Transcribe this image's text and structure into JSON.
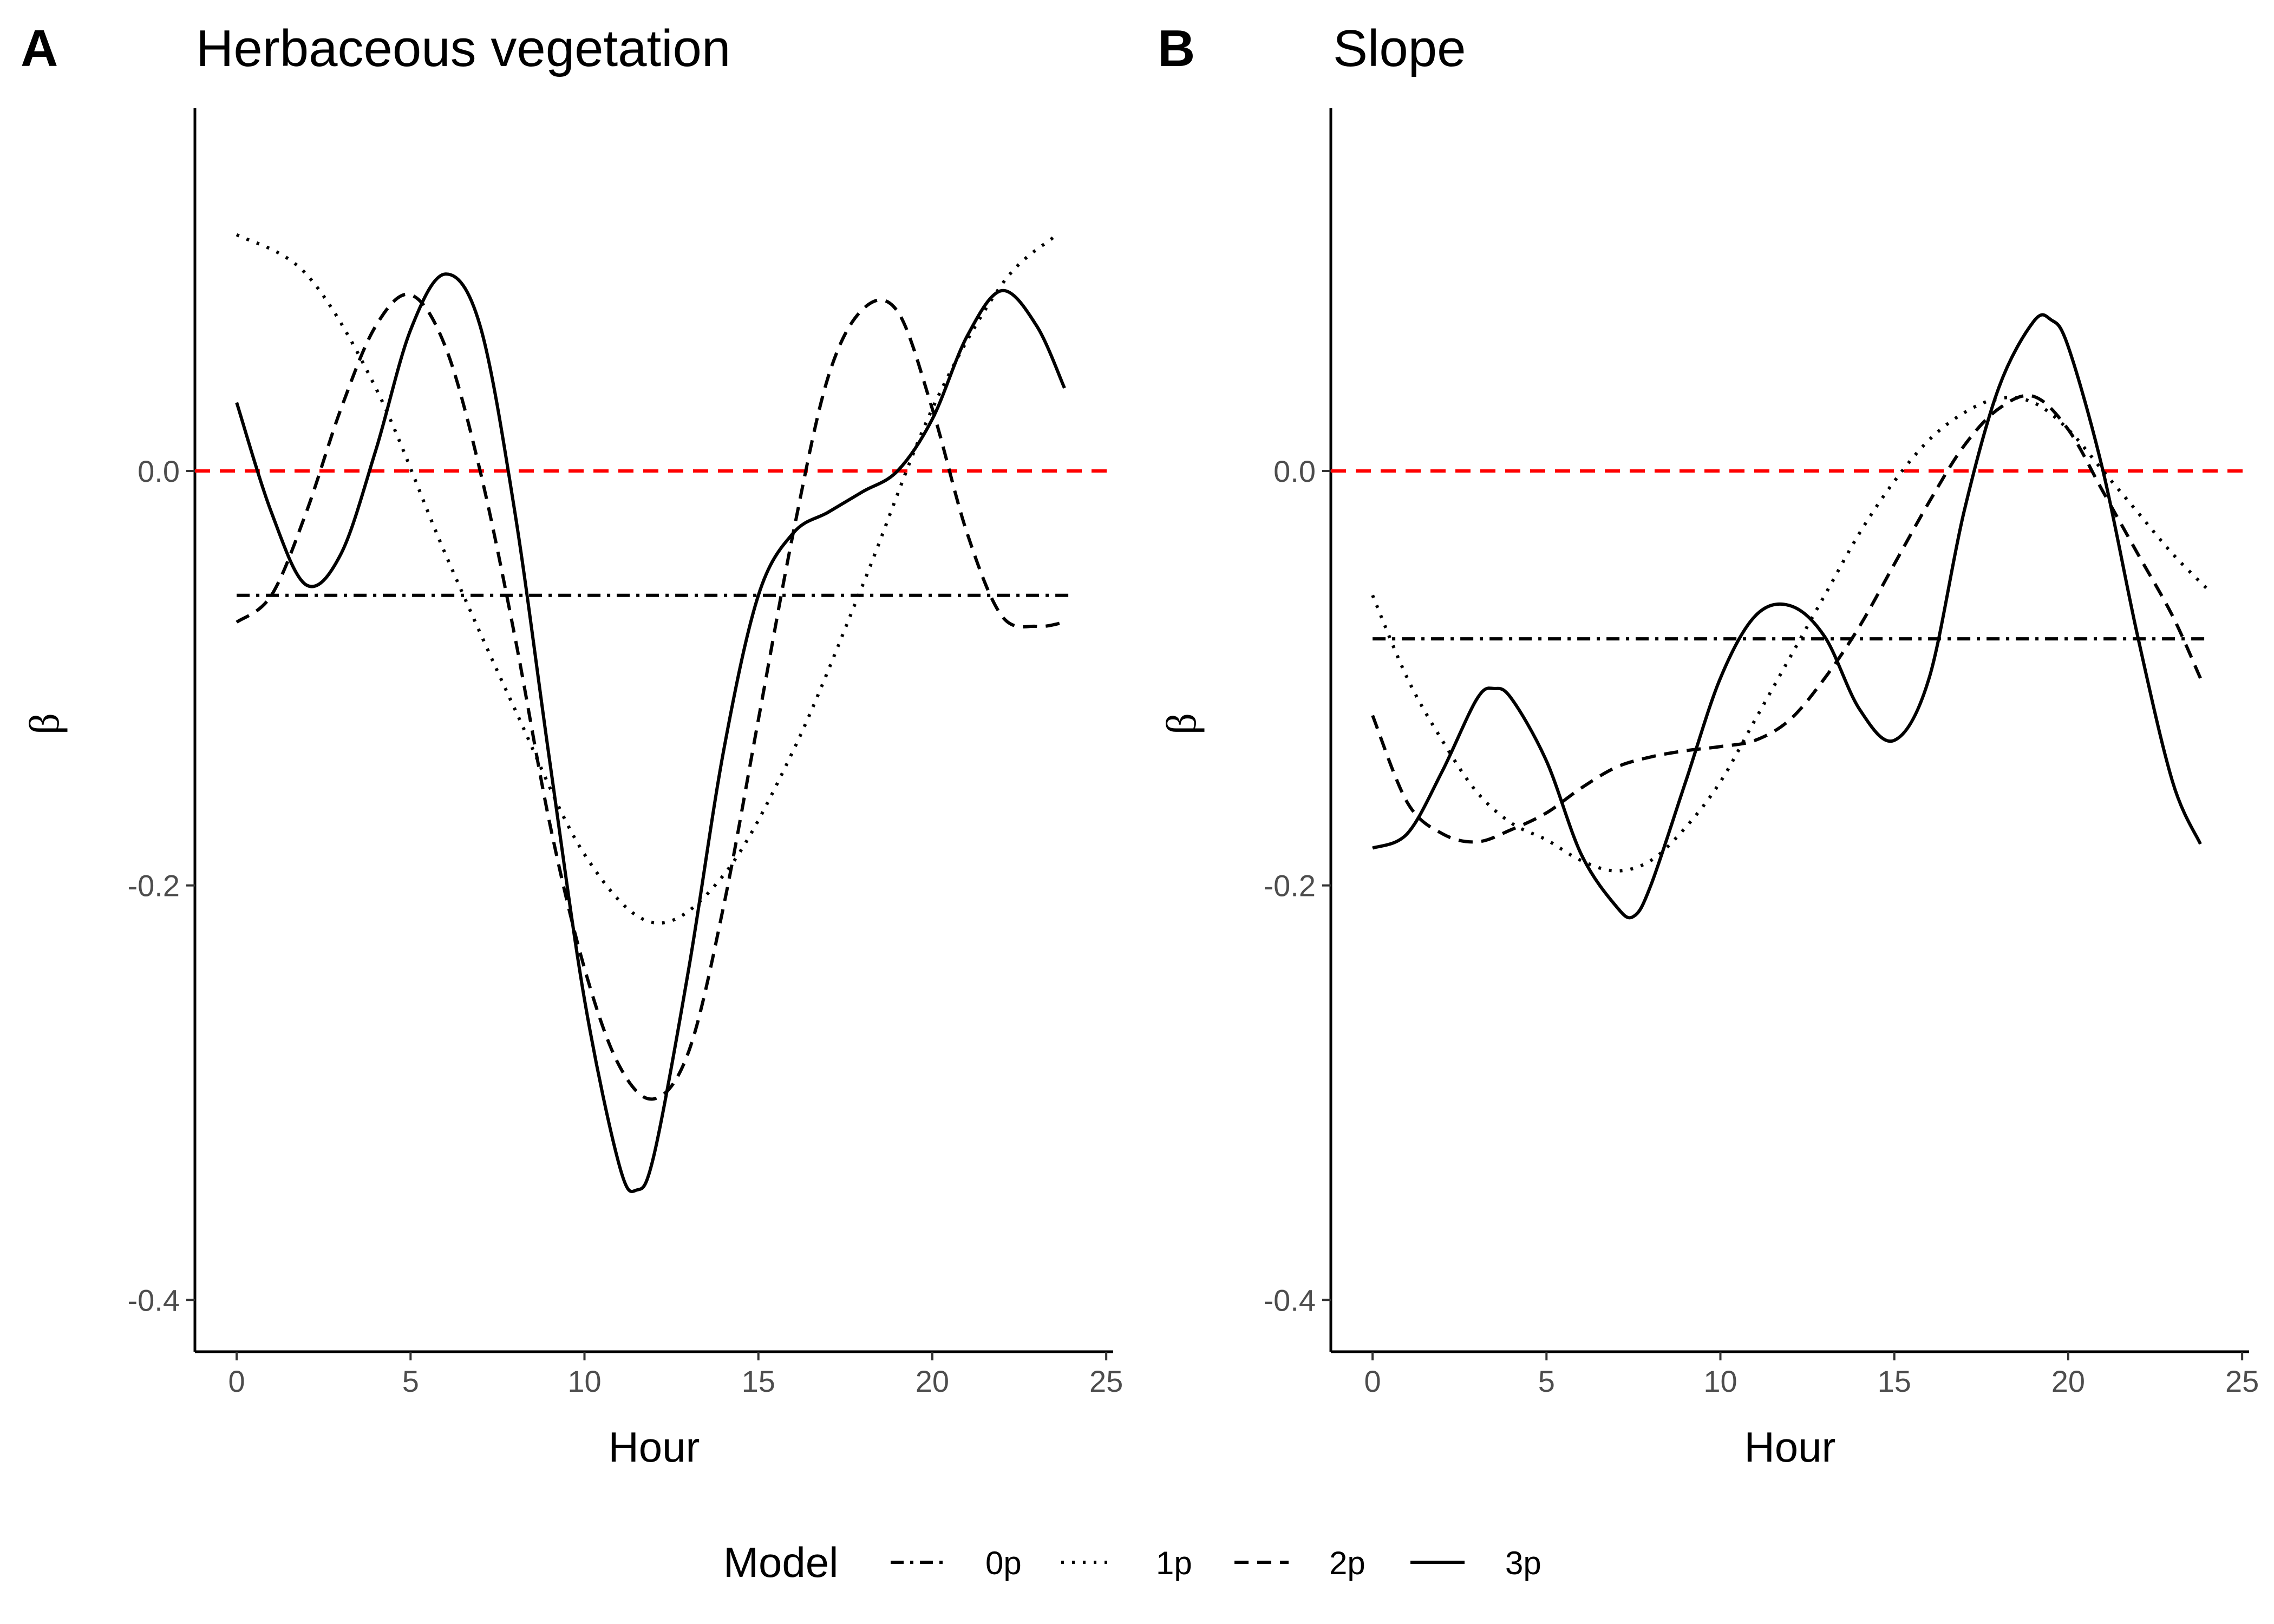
{
  "legend": {
    "title": "Model",
    "entries": [
      {
        "label": "0p",
        "dash": "dashdot"
      },
      {
        "label": "1p",
        "dash": "dotted"
      },
      {
        "label": "2p",
        "dash": "dashed"
      },
      {
        "label": "3p",
        "dash": "solid"
      }
    ]
  },
  "colors": {
    "reference_line": "#ff0000",
    "series": "#000000",
    "tick_text": "#4d4d4d"
  },
  "chart_data": [
    {
      "type": "line",
      "panel": "A",
      "title": "Herbaceous vegetation",
      "xlabel": "Hour",
      "ylabel": "β",
      "xlim": [
        -1.2,
        25.2
      ],
      "ylim": [
        -0.425,
        0.175
      ],
      "xticks": [
        0,
        5,
        10,
        15,
        20,
        25
      ],
      "yticks": [
        0.0,
        -0.2,
        -0.4
      ],
      "ytick_labels": [
        "0.0",
        "-0.2",
        "-0.4"
      ],
      "reference_line": {
        "y": 0,
        "style": "dashed",
        "color": "#ff0000",
        "x_range": [
          -1.2,
          25.2
        ]
      },
      "series": [
        {
          "name": "0p",
          "dash": "dashdot",
          "points": [
            [
              0,
              -0.06
            ],
            [
              24,
              -0.06
            ]
          ]
        },
        {
          "name": "1p",
          "dash": "dotted",
          "points": [
            [
              0,
              0.114
            ],
            [
              2,
              0.095
            ],
            [
              4,
              0.04
            ],
            [
              6,
              -0.04
            ],
            [
              8,
              -0.115
            ],
            [
              10,
              -0.185
            ],
            [
              12,
              -0.218
            ],
            [
              14,
              -0.195
            ],
            [
              16,
              -0.135
            ],
            [
              18,
              -0.055
            ],
            [
              20,
              0.03
            ],
            [
              22,
              0.09
            ],
            [
              23.5,
              0.113
            ]
          ]
        },
        {
          "name": "2p",
          "dash": "dashed",
          "points": [
            [
              0,
              -0.073
            ],
            [
              1,
              -0.06
            ],
            [
              2,
              -0.02
            ],
            [
              3,
              0.03
            ],
            [
              4,
              0.07
            ],
            [
              5,
              0.085
            ],
            [
              6,
              0.06
            ],
            [
              7,
              0.0
            ],
            [
              8,
              -0.08
            ],
            [
              9,
              -0.17
            ],
            [
              10,
              -0.24
            ],
            [
              11,
              -0.287
            ],
            [
              12,
              -0.303
            ],
            [
              13,
              -0.28
            ],
            [
              14,
              -0.21
            ],
            [
              15,
              -0.12
            ],
            [
              16,
              -0.03
            ],
            [
              17,
              0.045
            ],
            [
              18,
              0.078
            ],
            [
              19,
              0.077
            ],
            [
              20,
              0.03
            ],
            [
              21,
              -0.03
            ],
            [
              22,
              -0.07
            ],
            [
              23,
              -0.075
            ],
            [
              23.8,
              -0.073
            ]
          ]
        },
        {
          "name": "3p",
          "dash": "solid",
          "points": [
            [
              0,
              0.033
            ],
            [
              1,
              -0.02
            ],
            [
              2,
              -0.055
            ],
            [
              3,
              -0.04
            ],
            [
              4,
              0.01
            ],
            [
              5,
              0.068
            ],
            [
              6,
              0.095
            ],
            [
              7,
              0.07
            ],
            [
              8,
              -0.02
            ],
            [
              9,
              -0.14
            ],
            [
              10,
              -0.255
            ],
            [
              11,
              -0.335
            ],
            [
              11.5,
              -0.347
            ],
            [
              12,
              -0.33
            ],
            [
              13,
              -0.24
            ],
            [
              14,
              -0.135
            ],
            [
              15,
              -0.06
            ],
            [
              16,
              -0.03
            ],
            [
              17,
              -0.02
            ],
            [
              18,
              -0.01
            ],
            [
              19,
              0.0
            ],
            [
              20,
              0.025
            ],
            [
              21,
              0.065
            ],
            [
              22,
              0.087
            ],
            [
              23,
              0.07
            ],
            [
              23.8,
              0.04
            ]
          ]
        }
      ]
    },
    {
      "type": "line",
      "panel": "B",
      "title": "Slope",
      "xlabel": "Hour",
      "ylabel": "β",
      "xlim": [
        -1.2,
        25.2
      ],
      "ylim": [
        -0.425,
        0.175
      ],
      "xticks": [
        0,
        5,
        10,
        15,
        20,
        25
      ],
      "yticks": [
        0.0,
        -0.2,
        -0.4
      ],
      "ytick_labels": [
        "0.0",
        "-0.2",
        "-0.4"
      ],
      "reference_line": {
        "y": 0,
        "style": "dashed",
        "color": "#ff0000",
        "x_range": [
          -1.2,
          25.2
        ]
      },
      "series": [
        {
          "name": "0p",
          "dash": "dashdot",
          "points": [
            [
              0,
              -0.081
            ],
            [
              24,
              -0.081
            ]
          ]
        },
        {
          "name": "1p",
          "dash": "dotted",
          "points": [
            [
              0,
              -0.06
            ],
            [
              1,
              -0.1
            ],
            [
              2,
              -0.13
            ],
            [
              3,
              -0.155
            ],
            [
              4,
              -0.17
            ],
            [
              5,
              -0.178
            ],
            [
              6,
              -0.188
            ],
            [
              7,
              -0.193
            ],
            [
              8,
              -0.188
            ],
            [
              9,
              -0.172
            ],
            [
              10,
              -0.15
            ],
            [
              11,
              -0.12
            ],
            [
              12,
              -0.09
            ],
            [
              13,
              -0.06
            ],
            [
              14,
              -0.03
            ],
            [
              15,
              -0.005
            ],
            [
              16,
              0.015
            ],
            [
              17,
              0.028
            ],
            [
              18,
              0.035
            ],
            [
              19,
              0.033
            ],
            [
              20,
              0.02
            ],
            [
              21,
              0.0
            ],
            [
              22,
              -0.02
            ],
            [
              23,
              -0.04
            ],
            [
              24,
              -0.057
            ]
          ]
        },
        {
          "name": "2p",
          "dash": "dashed",
          "points": [
            [
              0,
              -0.118
            ],
            [
              1,
              -0.16
            ],
            [
              2,
              -0.175
            ],
            [
              3,
              -0.179
            ],
            [
              4,
              -0.173
            ],
            [
              5,
              -0.165
            ],
            [
              6,
              -0.153
            ],
            [
              7,
              -0.143
            ],
            [
              8,
              -0.138
            ],
            [
              9,
              -0.135
            ],
            [
              10,
              -0.133
            ],
            [
              11,
              -0.13
            ],
            [
              12,
              -0.12
            ],
            [
              13,
              -0.1
            ],
            [
              14,
              -0.075
            ],
            [
              15,
              -0.045
            ],
            [
              16,
              -0.015
            ],
            [
              17,
              0.012
            ],
            [
              18,
              0.03
            ],
            [
              19,
              0.036
            ],
            [
              20,
              0.02
            ],
            [
              21,
              -0.01
            ],
            [
              22,
              -0.04
            ],
            [
              23,
              -0.07
            ],
            [
              23.8,
              -0.1
            ]
          ]
        },
        {
          "name": "3p",
          "dash": "solid",
          "points": [
            [
              0,
              -0.182
            ],
            [
              1,
              -0.175
            ],
            [
              2,
              -0.145
            ],
            [
              3,
              -0.11
            ],
            [
              3.5,
              -0.105
            ],
            [
              4,
              -0.11
            ],
            [
              5,
              -0.14
            ],
            [
              6,
              -0.185
            ],
            [
              7,
              -0.21
            ],
            [
              7.5,
              -0.215
            ],
            [
              8,
              -0.2
            ],
            [
              9,
              -0.15
            ],
            [
              10,
              -0.1
            ],
            [
              11,
              -0.07
            ],
            [
              12,
              -0.065
            ],
            [
              13,
              -0.08
            ],
            [
              14,
              -0.115
            ],
            [
              15,
              -0.13
            ],
            [
              16,
              -0.1
            ],
            [
              17,
              -0.02
            ],
            [
              18,
              0.04
            ],
            [
              19,
              0.072
            ],
            [
              19.5,
              0.073
            ],
            [
              20,
              0.06
            ],
            [
              21,
              0.0
            ],
            [
              22,
              -0.08
            ],
            [
              23,
              -0.15
            ],
            [
              23.8,
              -0.18
            ]
          ]
        }
      ]
    }
  ]
}
